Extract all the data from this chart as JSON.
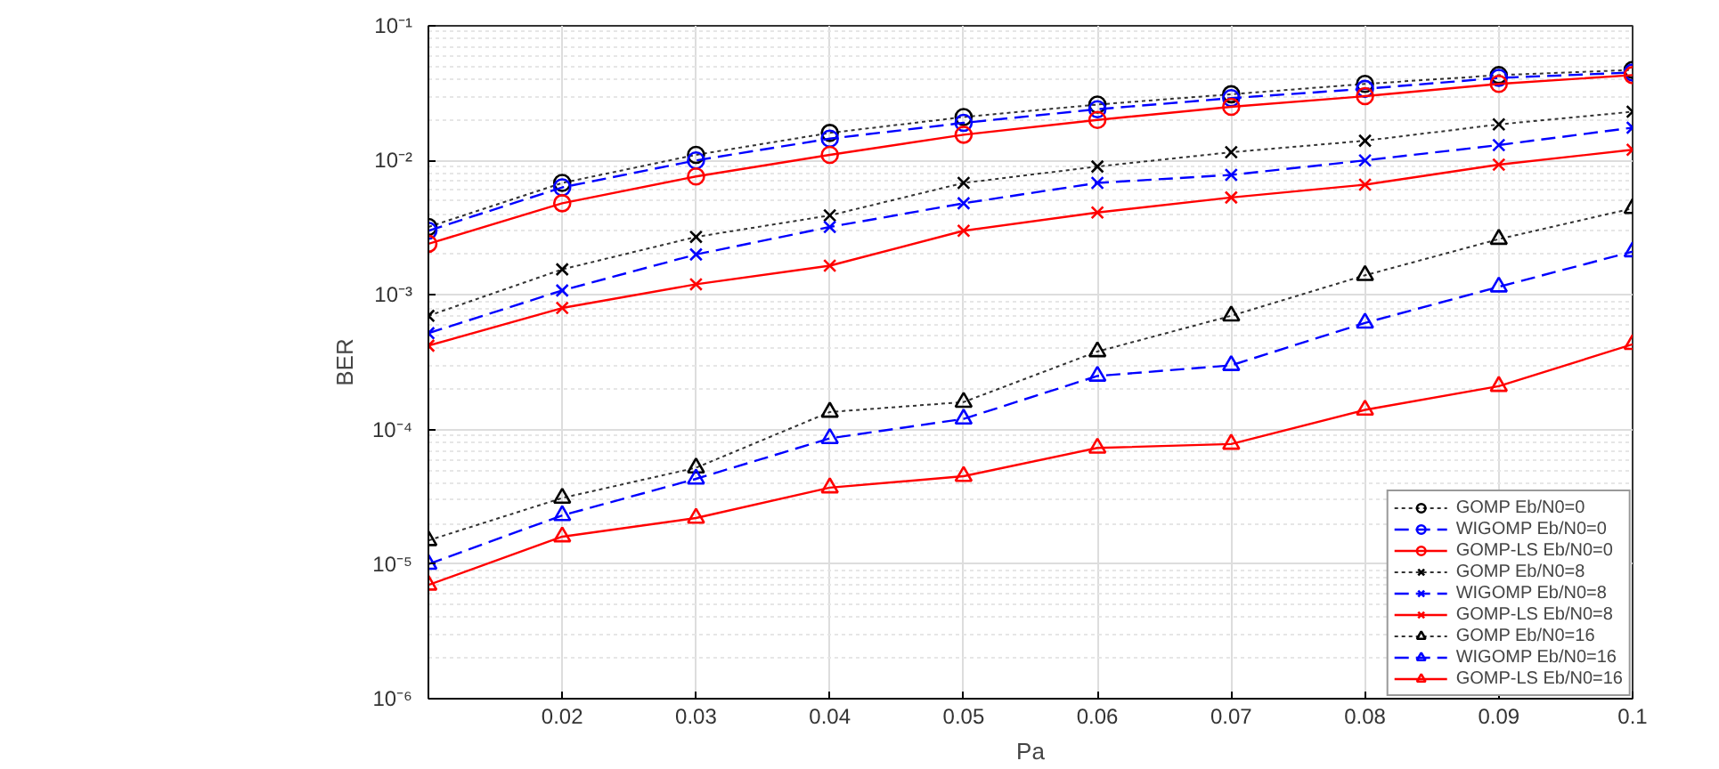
{
  "chart_data": {
    "type": "line",
    "xlabel": "Pa",
    "ylabel": "BER",
    "log": "y",
    "grid": true,
    "legend": "bottom right",
    "x": [
      0.01,
      0.02,
      0.03,
      0.04,
      0.05,
      0.06,
      0.07,
      0.08,
      0.09,
      0.1
    ],
    "xlim": [
      0.01,
      0.1
    ],
    "xticks": [
      0.02,
      0.03,
      0.04,
      0.05,
      0.06,
      0.07,
      0.08,
      0.09,
      0.1
    ],
    "ylim": [
      1e-06,
      0.1
    ],
    "yticks": [
      {
        "value": 1e-06,
        "label": "10⁻⁶"
      },
      {
        "value": 1e-05,
        "label": "10⁻⁵"
      },
      {
        "value": 0.0001,
        "label": "10⁻⁴"
      },
      {
        "value": 0.001,
        "label": "10⁻³"
      },
      {
        "value": 0.01,
        "label": "10⁻²"
      },
      {
        "value": 0.1,
        "label": "10⁻¹"
      }
    ],
    "series": [
      {
        "name": "GOMP Eb/N0=0",
        "color": "#000000",
        "marker": "circle",
        "line_style": "dotted",
        "values": [
          0.0032,
          0.0068,
          0.011,
          0.016,
          0.021,
          0.026,
          0.031,
          0.037,
          0.043,
          0.047
        ]
      },
      {
        "name": "WIGOMP Eb/N0=0",
        "color": "#0000ff",
        "marker": "circle",
        "line_style": "dashed",
        "values": [
          0.003,
          0.0063,
          0.01,
          0.0145,
          0.019,
          0.024,
          0.029,
          0.034,
          0.041,
          0.045
        ]
      },
      {
        "name": "GOMP-LS Eb/N0=0",
        "color": "#ff0000",
        "marker": "circle",
        "line_style": "solid",
        "values": [
          0.0024,
          0.0048,
          0.0076,
          0.011,
          0.0155,
          0.02,
          0.025,
          0.03,
          0.037,
          0.043
        ]
      },
      {
        "name": "GOMP Eb/N0=8",
        "color": "#000000",
        "marker": "cross",
        "line_style": "dotted",
        "values": [
          0.0007,
          0.00155,
          0.0027,
          0.0039,
          0.0068,
          0.009,
          0.0115,
          0.014,
          0.0185,
          0.023
        ]
      },
      {
        "name": "WIGOMP Eb/N0=8",
        "color": "#0000ff",
        "marker": "cross",
        "line_style": "dashed",
        "values": [
          0.00052,
          0.00108,
          0.002,
          0.0032,
          0.0048,
          0.0068,
          0.0078,
          0.01,
          0.013,
          0.0175
        ]
      },
      {
        "name": "GOMP-LS Eb/N0=8",
        "color": "#ff0000",
        "marker": "cross",
        "line_style": "solid",
        "values": [
          0.00042,
          0.0008,
          0.0012,
          0.00165,
          0.003,
          0.0041,
          0.0053,
          0.0066,
          0.0093,
          0.012
        ]
      },
      {
        "name": "GOMP Eb/N0=16",
        "color": "#000000",
        "marker": "triangle",
        "line_style": "dotted",
        "values": [
          1.5e-05,
          3.1e-05,
          5.2e-05,
          0.000135,
          0.00016,
          0.00038,
          0.0007,
          0.0014,
          0.0026,
          0.0044
        ]
      },
      {
        "name": "WIGOMP Eb/N0=16",
        "color": "#0000ff",
        "marker": "triangle",
        "line_style": "dashed",
        "values": [
          1e-05,
          2.3e-05,
          4.3e-05,
          8.6e-05,
          0.00012,
          0.00025,
          0.0003,
          0.00062,
          0.00115,
          0.0021
        ]
      },
      {
        "name": "GOMP-LS Eb/N0=16",
        "color": "#ff0000",
        "marker": "triangle",
        "line_style": "solid",
        "values": [
          7e-06,
          1.6e-05,
          2.2e-05,
          3.7e-05,
          4.5e-05,
          7.3e-05,
          7.8e-05,
          0.00014,
          0.00021,
          0.00043
        ]
      }
    ]
  }
}
